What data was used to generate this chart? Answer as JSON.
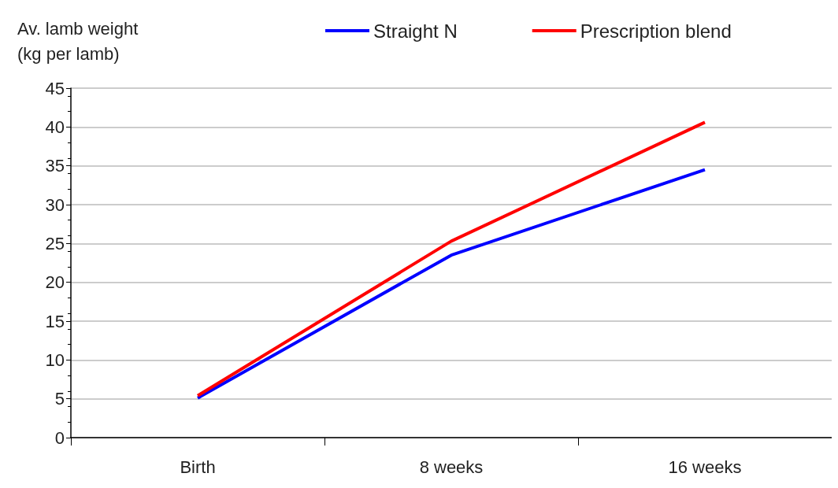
{
  "chart_data": {
    "type": "line",
    "ylabel": "Av. lamb weight\n(kg per lamb)",
    "categories": [
      "Birth",
      "8 weeks",
      "16 weeks"
    ],
    "series": [
      {
        "name": "Straight N",
        "color": "#0000ff",
        "values": [
          5.1,
          23.5,
          34.5
        ]
      },
      {
        "name": "Prescription blend",
        "color": "#ff0000",
        "values": [
          5.4,
          25.3,
          40.6
        ]
      }
    ],
    "ylim": [
      0,
      45
    ],
    "yticks": [
      0,
      5,
      10,
      15,
      20,
      25,
      30,
      35,
      40,
      45
    ],
    "grid": "y",
    "legend": "top",
    "marker": "none",
    "line_style": "solid"
  }
}
